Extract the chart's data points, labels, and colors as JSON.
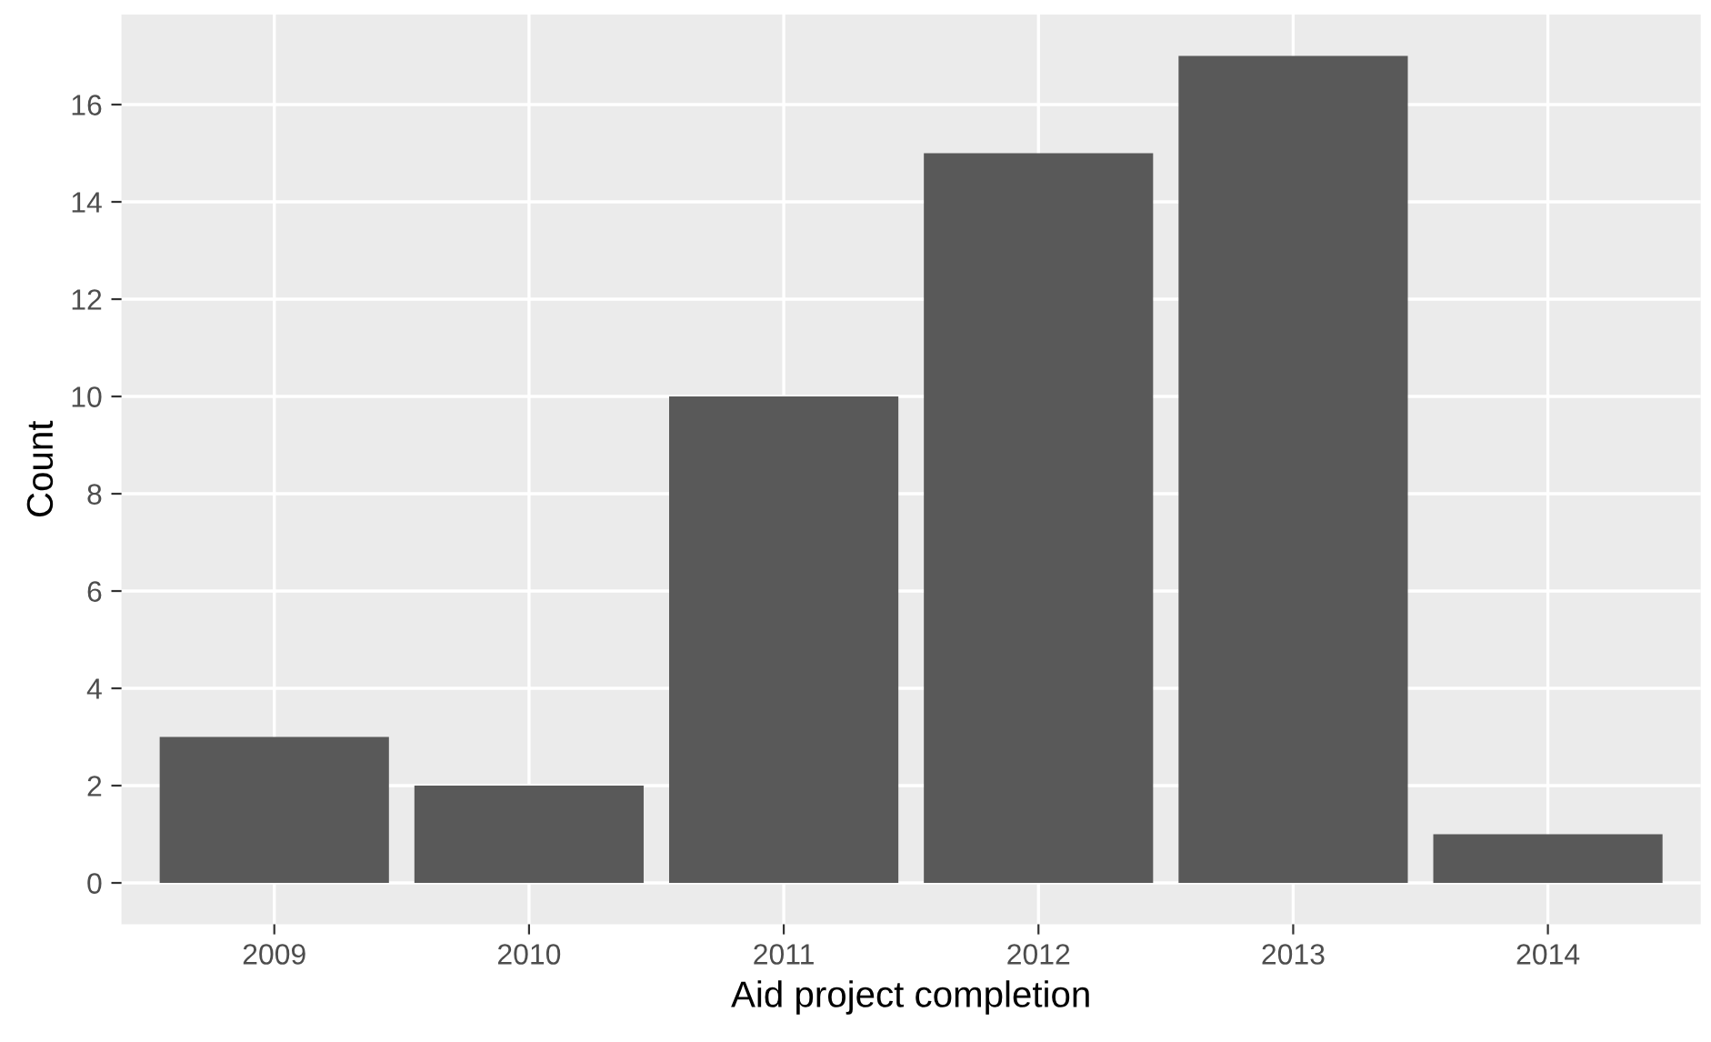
{
  "chart_data": {
    "type": "bar",
    "xlabel": "Aid project completion",
    "ylabel": "Count",
    "categories": [
      "2009",
      "2010",
      "2011",
      "2012",
      "2013",
      "2014"
    ],
    "values": [
      3,
      2,
      10,
      15,
      17,
      1
    ],
    "color": "#595959",
    "ylim": [
      -0.85,
      17.85
    ],
    "yticks": [
      0,
      2,
      4,
      6,
      8,
      10,
      12,
      14,
      16
    ],
    "grid": true
  }
}
